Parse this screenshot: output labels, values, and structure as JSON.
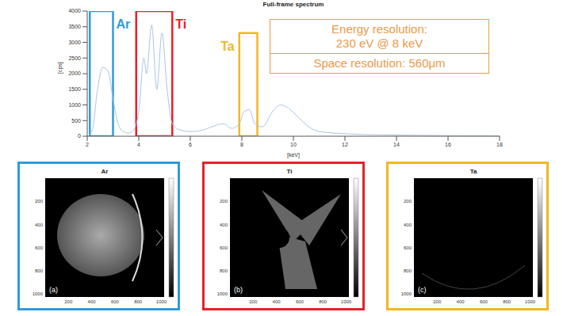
{
  "chart_data": {
    "type": "line",
    "title": "Full-frame spectrum",
    "x_label": "[keV]",
    "y_label": "[cps]",
    "x": [
      2.0,
      2.2,
      2.4,
      2.6,
      2.8,
      3.0,
      3.2,
      3.4,
      3.6,
      3.8,
      4.0,
      4.2,
      4.3,
      4.5,
      4.7,
      4.9,
      5.1,
      5.3,
      5.6,
      6.0,
      6.5,
      7.0,
      7.3,
      7.6,
      7.9,
      8.1,
      8.3,
      8.5,
      8.8,
      9.2,
      9.5,
      9.8,
      10.2,
      10.6,
      11.0,
      12.0,
      13.0,
      14.0,
      15.0,
      16.0,
      17.0,
      18.0
    ],
    "values": [
      0,
      200,
      1500,
      2200,
      2100,
      1200,
      400,
      150,
      100,
      200,
      800,
      2500,
      2000,
      3550,
      1500,
      3300,
      1500,
      400,
      200,
      150,
      200,
      350,
      400,
      250,
      400,
      800,
      850,
      400,
      300,
      800,
      1000,
      900,
      600,
      300,
      150,
      80,
      50,
      40,
      30,
      20,
      15,
      10
    ],
    "color": "#a9c5e2",
    "xlim": [
      2,
      18
    ],
    "xticks": [
      2,
      4,
      6,
      8,
      10,
      12,
      14,
      16,
      18
    ],
    "ylim": [
      0,
      4000
    ],
    "yticks": [
      0,
      500,
      1000,
      1500,
      2000,
      2500,
      3000,
      3500,
      4000
    ],
    "grid": false,
    "highlights": [
      {
        "label": "Ar",
        "color": "#2e9be0",
        "x": [
          2.1,
          3.0
        ],
        "y": [
          0,
          4000
        ]
      },
      {
        "label": "Ti",
        "color": "#e8202a",
        "x": [
          3.9,
          5.3
        ],
        "y": [
          0,
          4000
        ]
      },
      {
        "label": "Ta",
        "color": "#f2b81e",
        "x": [
          7.9,
          8.6
        ],
        "y": [
          0,
          3300
        ]
      }
    ],
    "annotations": [
      [
        "Energy resolution:",
        "230 eV @ 8 keV"
      ],
      [
        "Space resolution: 560μm"
      ]
    ],
    "annotation_color": "#e89a4c"
  },
  "panels": [
    {
      "title": "Ar",
      "letter": "(a)",
      "color": "#2e9be0",
      "xlim": [
        0,
        1024
      ],
      "ylim": [
        0,
        1024
      ],
      "xticks": [
        200,
        400,
        600,
        800,
        1000
      ],
      "yticks": [
        200,
        400,
        600,
        800,
        1000
      ]
    },
    {
      "title": "Ti",
      "letter": "(b)",
      "color": "#e8202a",
      "xlim": [
        0,
        1024
      ],
      "ylim": [
        0,
        1024
      ],
      "xticks": [
        200,
        400,
        600,
        800,
        1000
      ],
      "yticks": [
        200,
        400,
        600,
        800,
        1000
      ]
    },
    {
      "title": "Ta",
      "letter": "(c)",
      "color": "#f2b81e",
      "xlim": [
        0,
        1024
      ],
      "ylim": [
        0,
        1024
      ],
      "xticks": [
        200,
        400,
        600,
        800,
        1000
      ],
      "yticks": [
        200,
        400,
        600,
        800,
        1000
      ]
    }
  ]
}
